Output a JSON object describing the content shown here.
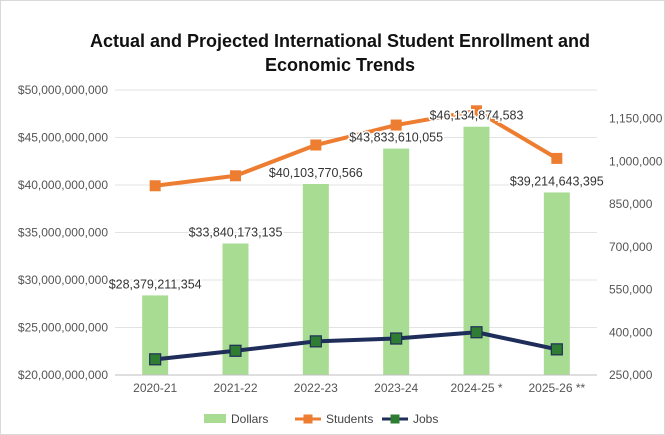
{
  "chart_data": {
    "type": "bar",
    "title_line1": "Actual and Projected International Student Enrollment and",
    "title_line2": "Economic Trends",
    "categories": [
      "2020-21",
      "2021-22",
      "2022-23",
      "2023-24",
      "2024-25 *",
      "2025-26 **"
    ],
    "series": [
      {
        "name": "Dollars",
        "kind": "bar",
        "axis": "left",
        "color": "#a9dc93",
        "values": [
          28379211354,
          33840173135,
          40103770566,
          43833610055,
          46134874583,
          39214643395
        ],
        "labels": [
          "$28,379,211,354",
          "$33,840,173,135",
          "$40,103,770,566",
          "$43,833,610,055",
          "$46,134,874,583",
          "$39,214,643,395"
        ]
      },
      {
        "name": "Students",
        "kind": "line",
        "axis": "right",
        "color": "#ed7d31",
        "values": [
          914000,
          949000,
          1057000,
          1127000,
          1177000,
          1010000
        ]
      },
      {
        "name": "Jobs",
        "kind": "line",
        "axis": "right",
        "color": "#1f2d5a",
        "marker_color": "#2e7d32",
        "values": [
          305000,
          335000,
          368000,
          378000,
          400000,
          340000
        ]
      }
    ],
    "left_axis": {
      "min": 20000000000,
      "max": 50000000000,
      "ticks": [
        20000000000,
        25000000000,
        30000000000,
        35000000000,
        40000000000,
        45000000000,
        50000000000
      ],
      "tick_labels": [
        "$20,000,000,000",
        "$25,000,000,000",
        "$30,000,000,000",
        "$35,000,000,000",
        "$40,000,000,000",
        "$45,000,000,000",
        "$50,000,000,000"
      ]
    },
    "right_axis": {
      "min": 250000,
      "max": 1250000,
      "ticks": [
        250000,
        400000,
        550000,
        700000,
        850000,
        1000000,
        1150000
      ],
      "tick_labels": [
        "250,000",
        "400,000",
        "550,000",
        "700,000",
        "850,000",
        "1,000,000",
        "1,150,000"
      ]
    },
    "grid": true,
    "legend_position": "bottom"
  }
}
